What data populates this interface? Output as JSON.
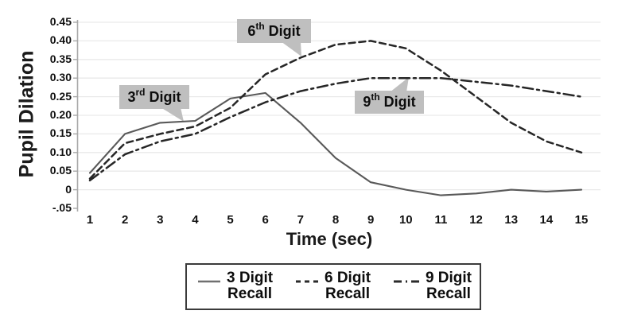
{
  "chart_data": {
    "type": "line",
    "title": "",
    "xlabel": "Time (sec)",
    "ylabel": "Pupil Dilation",
    "x": [
      1,
      2,
      3,
      4,
      5,
      6,
      7,
      8,
      9,
      10,
      11,
      12,
      13,
      14,
      15
    ],
    "xtick_labels": [
      "1",
      "2",
      "3",
      "4",
      "5",
      "6",
      "7",
      "8",
      "9",
      "10",
      "11",
      "12",
      "13",
      "14",
      "15"
    ],
    "xlim": [
      1,
      15
    ],
    "ylim": [
      -0.05,
      0.45
    ],
    "yticks": [
      0.45,
      0.4,
      0.35,
      0.3,
      0.25,
      0.2,
      0.15,
      0.1,
      0.05,
      0,
      -0.05
    ],
    "ytick_labels": [
      "0.45",
      "0.40",
      "0.35",
      "0.30",
      "0.25",
      "0.20",
      "0.15",
      "0.10",
      "0.05",
      "0",
      "-.05"
    ],
    "grid": "horizontal",
    "legend_position": "bottom",
    "series": [
      {
        "name": "3 Digit Recall",
        "style": "solid",
        "color": "#595959",
        "values": [
          0.045,
          0.15,
          0.18,
          0.185,
          0.245,
          0.26,
          0.18,
          0.085,
          0.02,
          0,
          -0.015,
          -0.01,
          0,
          -0.005,
          0
        ]
      },
      {
        "name": "6 Digit Recall",
        "style": "dashed",
        "color": "#262626",
        "values": [
          0.03,
          0.125,
          0.15,
          0.17,
          0.22,
          0.31,
          0.355,
          0.39,
          0.4,
          0.38,
          0.32,
          0.25,
          0.18,
          0.13,
          0.1
        ]
      },
      {
        "name": "9 Digit Recall",
        "style": "dashdot",
        "color": "#262626",
        "values": [
          0.025,
          0.095,
          0.13,
          0.15,
          0.195,
          0.235,
          0.265,
          0.285,
          0.3,
          0.3,
          0.3,
          0.29,
          0.28,
          0.265,
          0.25
        ]
      }
    ],
    "annotations": [
      {
        "num": "3",
        "sup": "rd",
        "rest": "Digit",
        "points_to": "3 Digit Recall"
      },
      {
        "num": "6",
        "sup": "th",
        "rest": "Digit",
        "points_to": "6 Digit Recall"
      },
      {
        "num": "9",
        "sup": "th",
        "rest": "Digit",
        "points_to": "9 Digit Recall"
      }
    ],
    "colors": {
      "grid": "#e9e9e9",
      "axis": "#a8a8a8",
      "annotation_bg": "#bfbfbf",
      "text": "#111111",
      "legend_border": "#3b3b3b"
    }
  },
  "legend": {
    "items": [
      {
        "line1": "3 Digit",
        "line2": "Recall",
        "style": "solid"
      },
      {
        "line1": "6 Digit",
        "line2": "Recall",
        "style": "dashed"
      },
      {
        "line1": "9 Digit",
        "line2": "Recall",
        "style": "dashdot"
      }
    ]
  }
}
